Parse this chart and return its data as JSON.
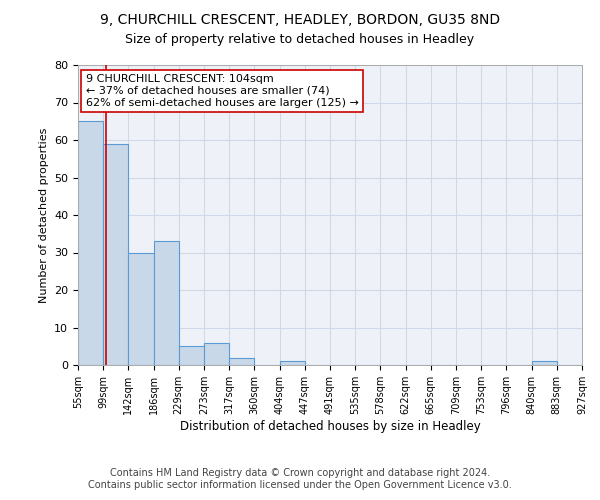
{
  "title1": "9, CHURCHILL CRESCENT, HEADLEY, BORDON, GU35 8ND",
  "title2": "Size of property relative to detached houses in Headley",
  "xlabel": "Distribution of detached houses by size in Headley",
  "ylabel": "Number of detached properties",
  "bin_edges": [
    55,
    99,
    142,
    186,
    229,
    273,
    317,
    360,
    404,
    447,
    491,
    535,
    578,
    622,
    665,
    709,
    753,
    796,
    840,
    883,
    927
  ],
  "bar_heights": [
    65,
    59,
    30,
    33,
    5,
    6,
    2,
    0,
    1,
    0,
    0,
    0,
    0,
    0,
    0,
    0,
    0,
    0,
    1,
    0
  ],
  "bar_color": "#c8d8e8",
  "bar_edge_color": "#5b9bd5",
  "grid_color": "#d0d8e8",
  "bg_color": "#eef2f8",
  "property_size": 104,
  "vline_color": "#cc0000",
  "annotation_line1": "9 CHURCHILL CRESCENT: 104sqm",
  "annotation_line2": "← 37% of detached houses are smaller (74)",
  "annotation_line3": "62% of semi-detached houses are larger (125) →",
  "annotation_box_edge": "#cc0000",
  "ylim": [
    0,
    80
  ],
  "yticks": [
    0,
    10,
    20,
    30,
    40,
    50,
    60,
    70,
    80
  ],
  "footer_text": "Contains HM Land Registry data © Crown copyright and database right 2024.\nContains public sector information licensed under the Open Government Licence v3.0.",
  "title1_fontsize": 10,
  "title2_fontsize": 9,
  "annotation_fontsize": 8,
  "footer_fontsize": 7,
  "ylabel_fontsize": 8,
  "xlabel_fontsize": 8.5
}
